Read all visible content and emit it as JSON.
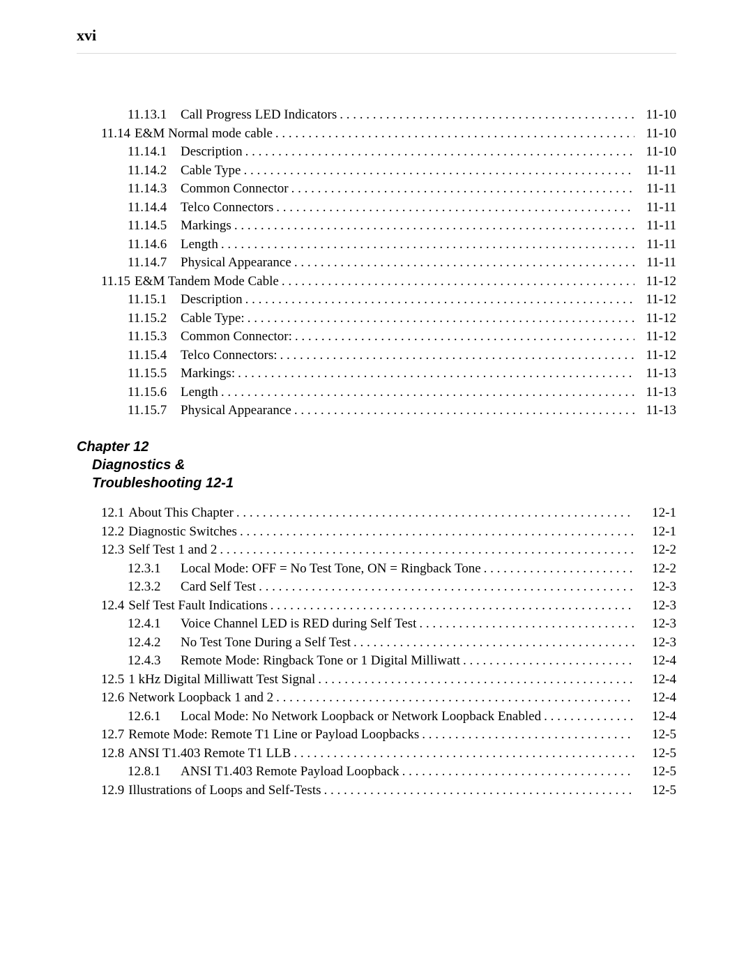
{
  "header": {
    "page_marker": "xvi"
  },
  "section_a": {
    "entries": [
      {
        "indent": 2,
        "num": "11.13.1",
        "title": "Call Progress LED Indicators",
        "page": "11-10"
      },
      {
        "indent": 1,
        "num": "11.14",
        "title": "E&M Normal mode cable",
        "page": "11-10"
      },
      {
        "indent": 2,
        "num": "11.14.1",
        "title": "Description",
        "page": "11-10"
      },
      {
        "indent": 2,
        "num": "11.14.2",
        "title": "Cable Type",
        "page": "11-11"
      },
      {
        "indent": 2,
        "num": "11.14.3",
        "title": "Common Connector",
        "page": "11-11"
      },
      {
        "indent": 2,
        "num": "11.14.4",
        "title": "Telco Connectors",
        "page": "11-11"
      },
      {
        "indent": 2,
        "num": "11.14.5",
        "title": "Markings",
        "page": "11-11"
      },
      {
        "indent": 2,
        "num": "11.14.6",
        "title": "Length",
        "page": "11-11"
      },
      {
        "indent": 2,
        "num": "11.14.7",
        "title": "Physical Appearance",
        "page": "11-11"
      },
      {
        "indent": 1,
        "num": "11.15",
        "title": "E&M Tandem Mode Cable",
        "page": "11-12"
      },
      {
        "indent": 2,
        "num": "11.15.1",
        "title": "Description",
        "page": "11-12"
      },
      {
        "indent": 2,
        "num": "11.15.2",
        "title": "Cable Type:",
        "page": "11-12"
      },
      {
        "indent": 2,
        "num": "11.15.3",
        "title": "Common Connector:",
        "page": "11-12"
      },
      {
        "indent": 2,
        "num": "11.15.4",
        "title": "Telco Connectors:",
        "page": "11-12"
      },
      {
        "indent": 2,
        "num": "11.15.5",
        "title": "Markings:",
        "page": "11-13"
      },
      {
        "indent": 2,
        "num": "11.15.6",
        "title": "Length",
        "page": "11-13"
      },
      {
        "indent": 2,
        "num": "11.15.7",
        "title": "Physical Appearance",
        "page": "11-13"
      }
    ]
  },
  "chapter_heading": {
    "line1": "Chapter 12",
    "line2": "Diagnostics &",
    "line3": "Troubleshooting 12-1"
  },
  "section_b": {
    "entries": [
      {
        "indent": 1,
        "num": "12.1",
        "title": "About This Chapter",
        "page": "12-1"
      },
      {
        "indent": 1,
        "num": "12.2",
        "title": "Diagnostic Switches",
        "page": "12-1"
      },
      {
        "indent": 1,
        "num": "12.3",
        "title": "Self Test 1 and 2",
        "page": "12-2"
      },
      {
        "indent": 2,
        "num": "12.3.1",
        "title": "Local Mode: OFF = No Test Tone, ON = Ringback Tone",
        "page": "12-2"
      },
      {
        "indent": 2,
        "num": "12.3.2",
        "title": "Card Self Test",
        "page": "12-3"
      },
      {
        "indent": 1,
        "num": "12.4",
        "title": "Self Test Fault Indications",
        "page": "12-3"
      },
      {
        "indent": 2,
        "num": "12.4.1",
        "title": "Voice Channel LED is RED during Self Test",
        "page": "12-3"
      },
      {
        "indent": 2,
        "num": "12.4.2",
        "title": "No Test Tone During a Self Test",
        "page": "12-3"
      },
      {
        "indent": 2,
        "num": "12.4.3",
        "title": "Remote Mode: Ringback Tone or 1 Digital Milliwatt",
        "page": "12-4"
      },
      {
        "indent": 1,
        "num": "12.5",
        "title": "1 kHz Digital Milliwatt Test Signal",
        "page": "12-4"
      },
      {
        "indent": 1,
        "num": "12.6",
        "title": "Network Loopback 1 and 2",
        "page": "12-4"
      },
      {
        "indent": 2,
        "num": "12.6.1",
        "title": "Local Mode: No Network Loopback or Network Loopback Enabled",
        "page": "12-4"
      },
      {
        "indent": 1,
        "num": "12.7",
        "title": "Remote Mode: Remote T1 Line or Payload Loopbacks",
        "page": "12-5"
      },
      {
        "indent": 1,
        "num": "12.8",
        "title": "ANSI T1.403 Remote T1 LLB",
        "page": "12-5"
      },
      {
        "indent": 2,
        "num": "12.8.1",
        "title": "ANSI T1.403 Remote Payload Loopback",
        "page": "12-5"
      },
      {
        "indent": 1,
        "num": "12.9",
        "title": "Illustrations of Loops and Self-Tests",
        "page": "12-5"
      }
    ]
  }
}
